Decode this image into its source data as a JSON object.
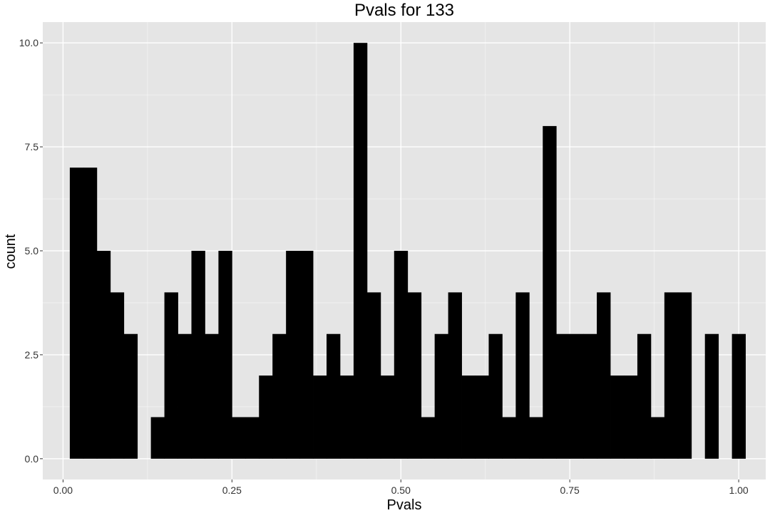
{
  "chart_data": {
    "type": "bar",
    "title": "Pvals for 133",
    "xlabel": "Pvals",
    "ylabel": "count",
    "xlim": [
      -0.03,
      1.04
    ],
    "ylim": [
      -0.5,
      10.5
    ],
    "grid": true,
    "background": "#E5E5E5",
    "bar_color": "#000000",
    "grid_major_color": "#FFFFFF",
    "x_ticks": [
      {
        "value": 0,
        "label": "0.00"
      },
      {
        "value": 0.25,
        "label": "0.25"
      },
      {
        "value": 0.5,
        "label": "0.50"
      },
      {
        "value": 0.75,
        "label": "0.75"
      },
      {
        "value": 1,
        "label": "1.00"
      }
    ],
    "y_ticks": [
      {
        "value": 0,
        "label": "0.0"
      },
      {
        "value": 2.5,
        "label": "2.5"
      },
      {
        "value": 5,
        "label": "5.0"
      },
      {
        "value": 7.5,
        "label": "7.5"
      },
      {
        "value": 10,
        "label": "10.0"
      }
    ],
    "bin_width": 0.02,
    "first_bin_center": 0.02,
    "counts": [
      7,
      7,
      5,
      4,
      3,
      0,
      1,
      4,
      3,
      5,
      3,
      5,
      1,
      1,
      2,
      3,
      5,
      5,
      2,
      3,
      2,
      10,
      4,
      2,
      5,
      4,
      1,
      3,
      4,
      2,
      2,
      3,
      1,
      4,
      1,
      8,
      3,
      3,
      3,
      4,
      2,
      2,
      3,
      1,
      4,
      4,
      0,
      3,
      0,
      3
    ]
  }
}
